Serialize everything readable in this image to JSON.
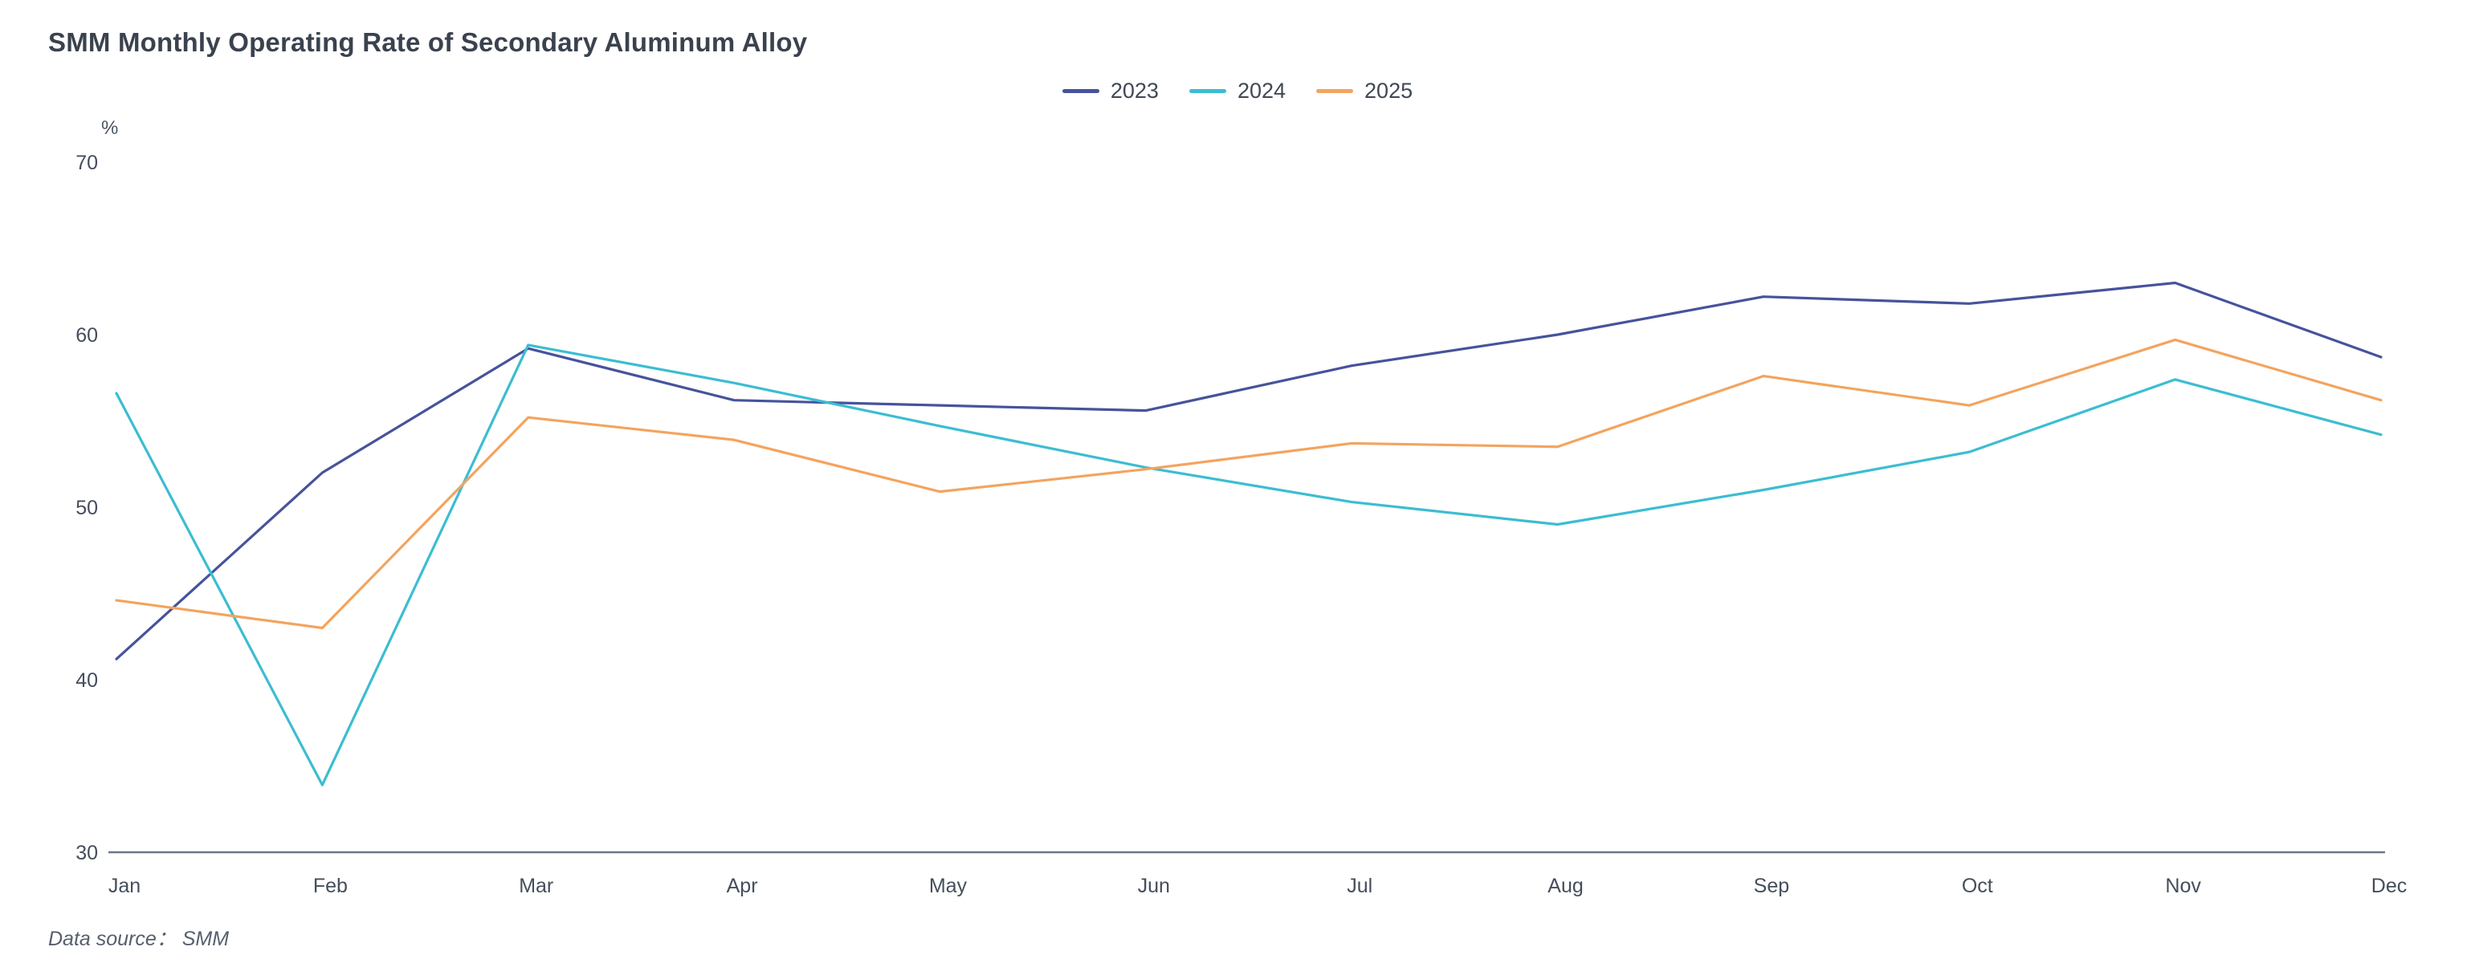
{
  "title": "SMM Monthly Operating Rate of Secondary Aluminum Alloy",
  "unit_label": "%",
  "footer": {
    "data_source": "Data source：  SMM"
  },
  "chart_data": {
    "type": "line",
    "title": "SMM Monthly Operating Rate of Secondary Aluminum Alloy",
    "categories": [
      "Jan",
      "Feb",
      "Mar",
      "Apr",
      "May",
      "Jun",
      "Jul",
      "Aug",
      "Sep",
      "Oct",
      "Nov",
      "Dec"
    ],
    "series": [
      {
        "name": "2023",
        "color": "#46539b",
        "values": [
          41.2,
          52.0,
          59.2,
          56.2,
          55.9,
          55.6,
          58.2,
          60.0,
          62.2,
          61.8,
          63.0,
          58.7
        ]
      },
      {
        "name": "2024",
        "color": "#3bbdd1",
        "values": [
          56.6,
          33.9,
          59.4,
          57.2,
          54.7,
          52.3,
          50.3,
          49.0,
          51.0,
          53.2,
          57.4,
          54.2
        ]
      },
      {
        "name": "2025",
        "color": "#f3a45f",
        "values": [
          44.6,
          43.0,
          55.2,
          53.9,
          50.9,
          52.2,
          53.7,
          53.5,
          57.6,
          55.9,
          59.7,
          56.2
        ]
      }
    ],
    "xlabel": "",
    "ylabel": "%",
    "ylim": [
      30,
      70
    ],
    "yticks": [
      30,
      40,
      50,
      60,
      70
    ],
    "grid": false,
    "legend_position": "top-center",
    "axis_line_color": "#6c7585"
  }
}
